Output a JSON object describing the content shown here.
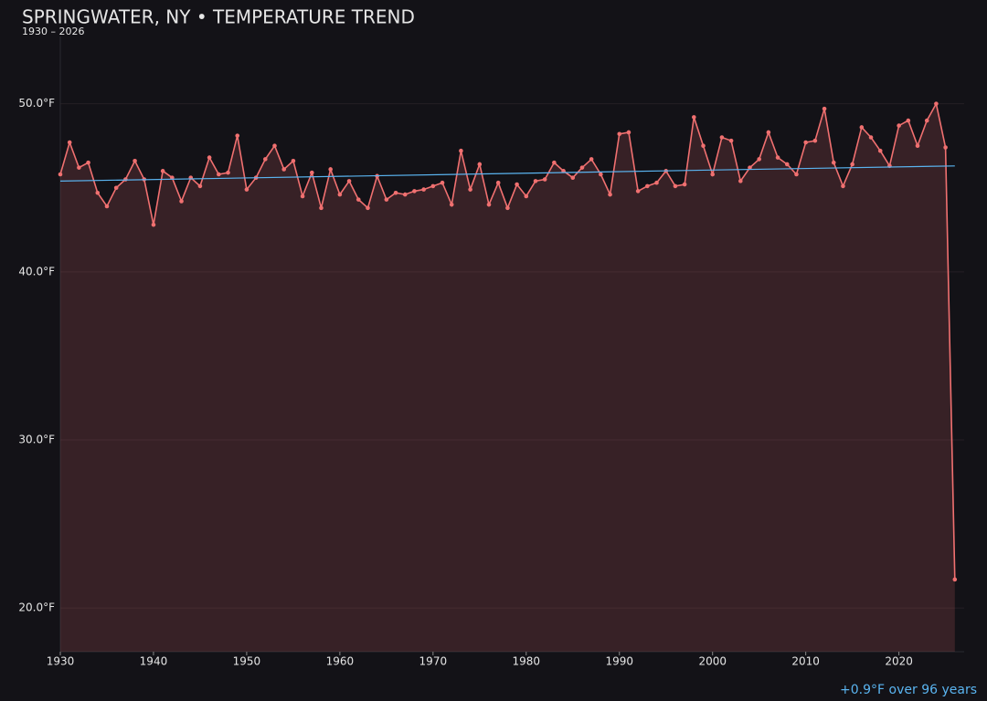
{
  "chart_data": {
    "type": "line",
    "title": "SPRINGWATER, NY • TEMPERATURE TREND",
    "subtitle": "1930 – 2026",
    "annotation": "+0.9°F over 96 years",
    "x": [
      1930,
      1931,
      1932,
      1933,
      1934,
      1935,
      1936,
      1937,
      1938,
      1939,
      1940,
      1941,
      1942,
      1943,
      1944,
      1945,
      1946,
      1947,
      1948,
      1949,
      1950,
      1951,
      1952,
      1953,
      1954,
      1955,
      1956,
      1957,
      1958,
      1959,
      1960,
      1961,
      1962,
      1963,
      1964,
      1965,
      1966,
      1967,
      1968,
      1969,
      1970,
      1971,
      1972,
      1973,
      1974,
      1975,
      1976,
      1977,
      1978,
      1979,
      1980,
      1981,
      1982,
      1983,
      1984,
      1985,
      1986,
      1987,
      1988,
      1989,
      1990,
      1991,
      1992,
      1993,
      1994,
      1995,
      1996,
      1997,
      1998,
      1999,
      2000,
      2001,
      2002,
      2003,
      2004,
      2005,
      2006,
      2007,
      2008,
      2009,
      2010,
      2011,
      2012,
      2013,
      2014,
      2015,
      2016,
      2017,
      2018,
      2019,
      2020,
      2021,
      2022,
      2023,
      2024,
      2025,
      2026
    ],
    "series": [
      {
        "color": "#f07070",
        "values": [
          45.8,
          47.7,
          46.2,
          46.5,
          44.7,
          43.9,
          45.0,
          45.5,
          46.6,
          45.5,
          42.8,
          46.0,
          45.6,
          44.2,
          45.6,
          45.1,
          46.8,
          45.8,
          45.9,
          48.1,
          44.9,
          45.6,
          46.7,
          47.5,
          46.1,
          46.6,
          44.5,
          45.9,
          43.8,
          46.1,
          44.6,
          45.4,
          44.3,
          43.8,
          45.7,
          44.3,
          44.7,
          44.6,
          44.8,
          44.9,
          45.1,
          45.3,
          44.0,
          47.2,
          44.9,
          46.4,
          44.0,
          45.3,
          43.8,
          45.2,
          44.5,
          45.4,
          45.5,
          46.5,
          46.0,
          45.6,
          46.2,
          46.7,
          45.8,
          44.6,
          48.2,
          48.3,
          44.8,
          45.1,
          45.3,
          46.0,
          45.1,
          45.2,
          49.2,
          47.5,
          45.8,
          48.0,
          47.8,
          45.4,
          46.2,
          46.7,
          48.3,
          46.8,
          46.4,
          45.8,
          47.7,
          47.8,
          49.7,
          46.5,
          45.1,
          46.4,
          48.6,
          48.0,
          47.2,
          46.3,
          48.7,
          49.0,
          47.5,
          49.0,
          50.0,
          47.4,
          21.7
        ]
      }
    ],
    "trend": {
      "color": "#5ab4f0",
      "x": [
        1930,
        2026
      ],
      "values": [
        45.4,
        46.3
      ]
    },
    "xlim": [
      1930,
      2027
    ],
    "ylim": [
      17.4,
      54.0
    ],
    "xticks": [
      1930,
      1940,
      1950,
      1960,
      1970,
      1980,
      1990,
      2000,
      2010,
      2020
    ],
    "yticks": [
      {
        "value": 20,
        "label": "20.0°F"
      },
      {
        "value": 30,
        "label": "30.0°F"
      },
      {
        "value": 40,
        "label": "40.0°F"
      },
      {
        "value": 50,
        "label": "50.0°F"
      }
    ],
    "grid": true
  }
}
